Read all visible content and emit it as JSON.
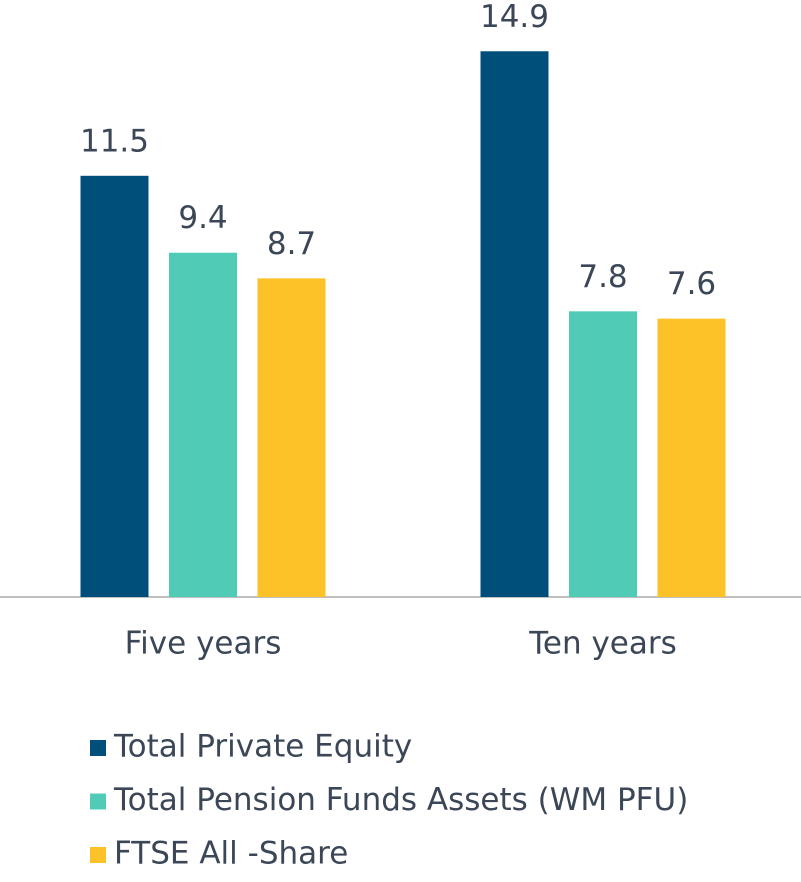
{
  "chart_data": {
    "type": "bar",
    "categories": [
      "Five years",
      "Ten years"
    ],
    "series": [
      {
        "name": "Total Private Equity",
        "color": "#004f7a",
        "values": [
          11.5,
          14.9
        ]
      },
      {
        "name": "Total Pension Funds Assets (WM PFU)",
        "color": "#50cbb6",
        "values": [
          9.4,
          7.8
        ]
      },
      {
        "name": "FTSE All -Share",
        "color": "#fdc227",
        "values": [
          8.7,
          7.6
        ]
      }
    ],
    "ylim": [
      0,
      16.3
    ]
  }
}
